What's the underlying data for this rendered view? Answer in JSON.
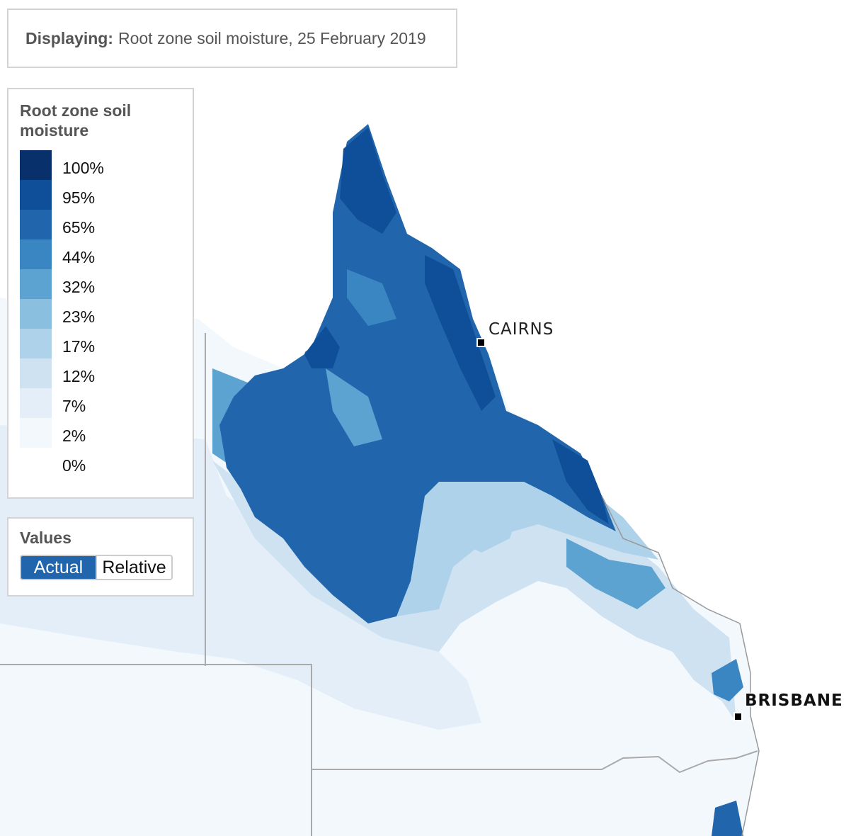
{
  "displaying": {
    "label": "Displaying:",
    "value": "Root zone soil moisture, 25 February 2019"
  },
  "legend": {
    "title": "Root zone soil moisture",
    "items": [
      {
        "label": "100%",
        "color": "#08306b"
      },
      {
        "label": "95%",
        "color": "#0f4f9a"
      },
      {
        "label": "65%",
        "color": "#2166ac"
      },
      {
        "label": "44%",
        "color": "#3a86c2"
      },
      {
        "label": "32%",
        "color": "#5da3d1"
      },
      {
        "label": "23%",
        "color": "#8abfe0"
      },
      {
        "label": "17%",
        "color": "#aed2ea"
      },
      {
        "label": "12%",
        "color": "#cfe2f2"
      },
      {
        "label": "7%",
        "color": "#e3eef8"
      },
      {
        "label": "2%",
        "color": "#f3f8fd"
      },
      {
        "label": "0%",
        "color": "#ffffff"
      }
    ]
  },
  "values_toggle": {
    "title": "Values",
    "options": [
      "Actual",
      "Relative"
    ],
    "selected": "Actual"
  },
  "cities": [
    {
      "name": "CAIRNS"
    },
    {
      "name": "BRISBANE"
    }
  ]
}
